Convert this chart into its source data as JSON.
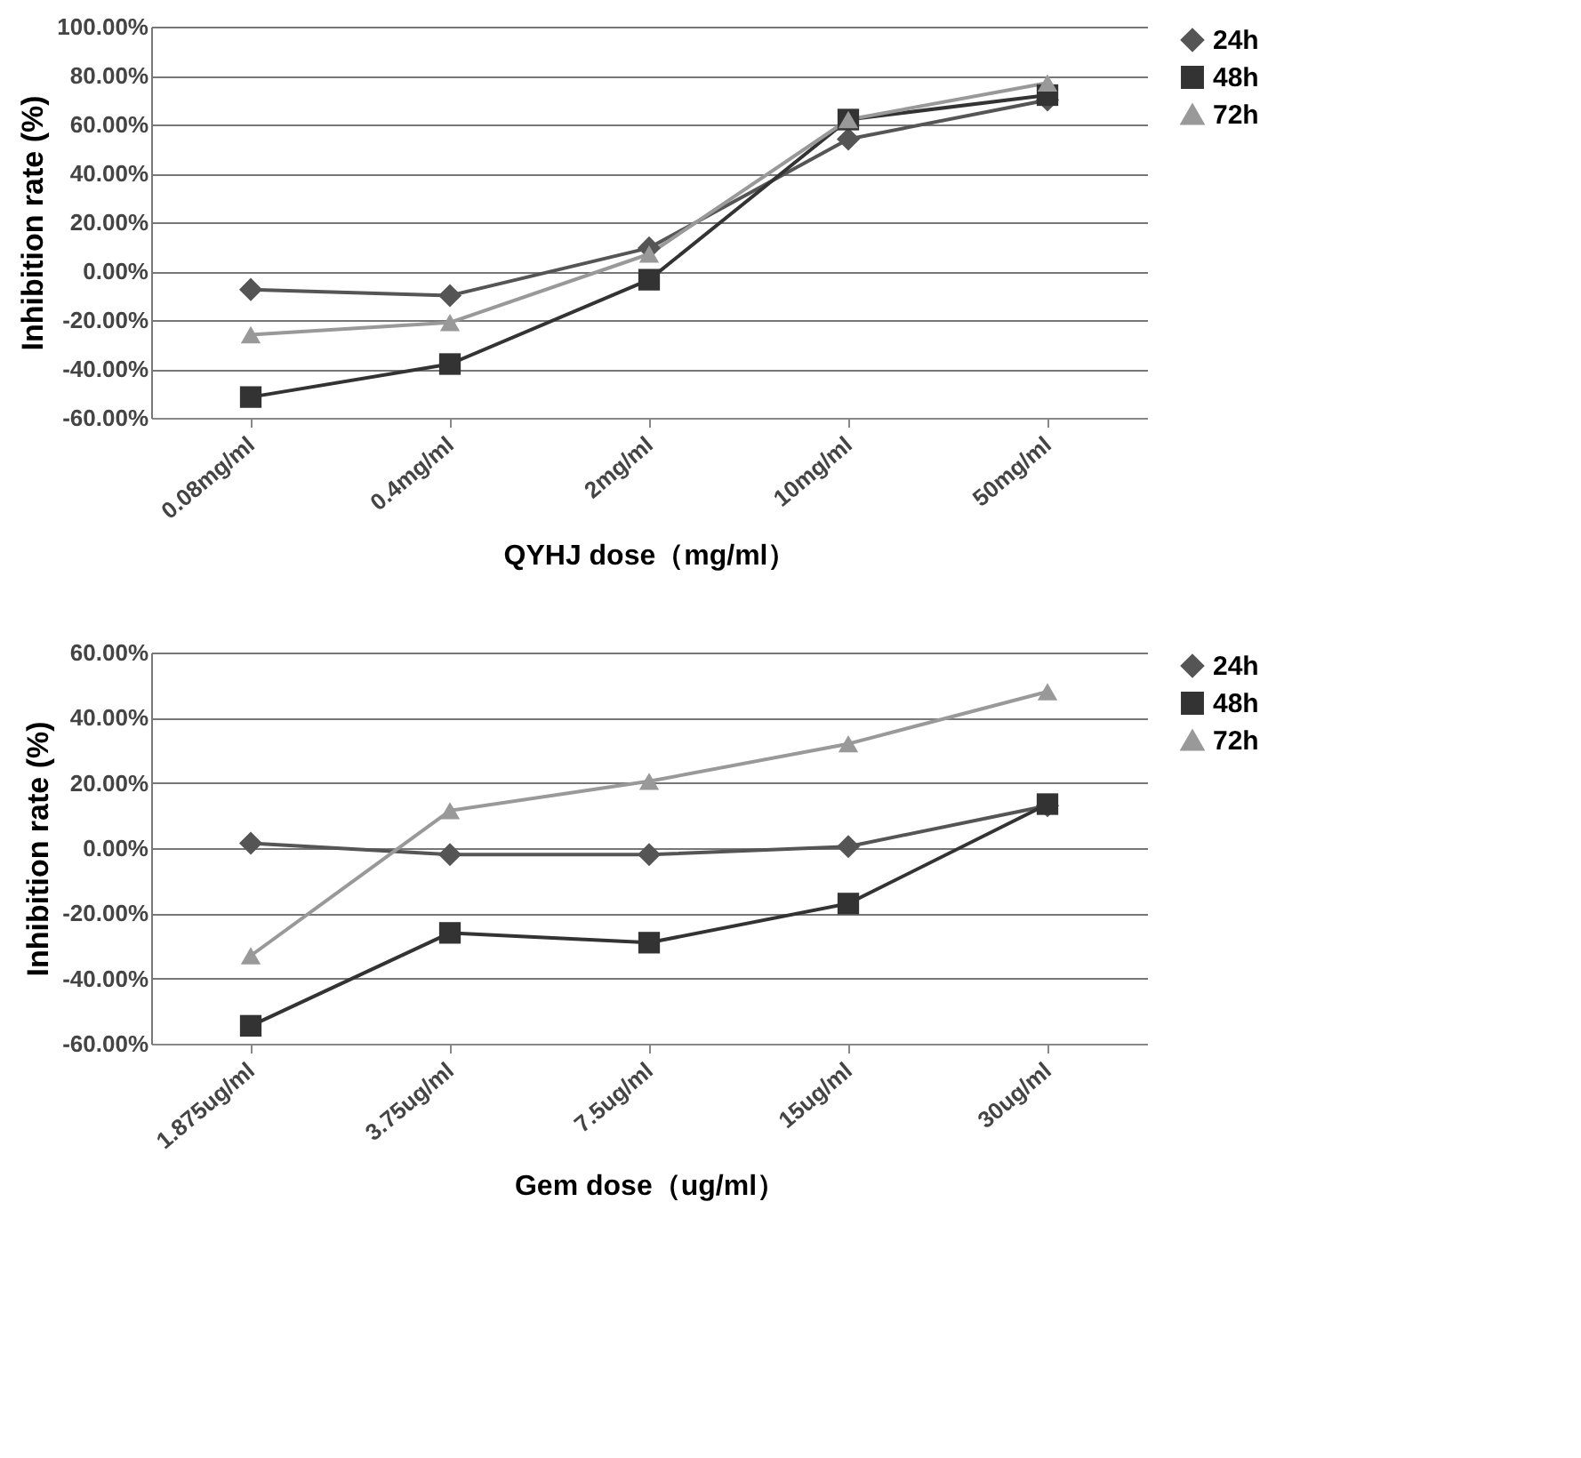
{
  "chart_data": [
    {
      "type": "line",
      "ylabel": "Inhibition rate (%)",
      "xlabel": "QYHJ dose（mg/ml）",
      "categories": [
        "0.08mg/ml",
        "0.4mg/ml",
        "2mg/ml",
        "10mg/ml",
        "50mg/ml"
      ],
      "series": [
        {
          "name": "24h",
          "color": "#555555",
          "marker": "diamond",
          "values": [
            -7.5,
            -10,
            9.5,
            54,
            70
          ]
        },
        {
          "name": "48h",
          "color": "#333333",
          "marker": "square",
          "values": [
            -51.5,
            -38,
            -3.5,
            62,
            72
          ]
        },
        {
          "name": "72h",
          "color": "#999999",
          "marker": "triangle",
          "values": [
            -26,
            -21,
            7,
            62,
            77
          ]
        }
      ],
      "ylim": [
        -60,
        100
      ],
      "yticks": [
        {
          "value": -60,
          "label": "-60.00%"
        },
        {
          "value": -40,
          "label": "-40.00%"
        },
        {
          "value": -20,
          "label": "-20.00%"
        },
        {
          "value": 0,
          "label": "0.00%"
        },
        {
          "value": 20,
          "label": "20.00%"
        },
        {
          "value": 40,
          "label": "40.00%"
        },
        {
          "value": 60,
          "label": "60.00%"
        },
        {
          "value": 80,
          "label": "80.00%"
        },
        {
          "value": 100,
          "label": "100.00%"
        }
      ],
      "grid": "y",
      "legend": "right"
    },
    {
      "type": "line",
      "ylabel": "Inhibition rate (%)",
      "xlabel": "Gem dose（ug/ml）",
      "categories": [
        "1.875ug/ml",
        "3.75ug/ml",
        "7.5ug/ml",
        "15ug/ml",
        "30ug/ml"
      ],
      "series": [
        {
          "name": "24h",
          "color": "#555555",
          "marker": "diamond",
          "values": [
            1.5,
            -2,
            -2,
            0.5,
            13
          ]
        },
        {
          "name": "48h",
          "color": "#333333",
          "marker": "square",
          "values": [
            -54.5,
            -26,
            -29,
            -17,
            13.5
          ]
        },
        {
          "name": "72h",
          "color": "#999999",
          "marker": "triangle",
          "values": [
            -33,
            11.5,
            20.5,
            32,
            48
          ]
        }
      ],
      "ylim": [
        -60,
        60
      ],
      "yticks": [
        {
          "value": -60,
          "label": "-60.00%"
        },
        {
          "value": -40,
          "label": "-40.00%"
        },
        {
          "value": -20,
          "label": "-20.00%"
        },
        {
          "value": 0,
          "label": "0.00%"
        },
        {
          "value": 20,
          "label": "20.00%"
        },
        {
          "value": 40,
          "label": "40.00%"
        },
        {
          "value": 60,
          "label": "60.00%"
        }
      ],
      "grid": "y",
      "legend": "right"
    }
  ]
}
